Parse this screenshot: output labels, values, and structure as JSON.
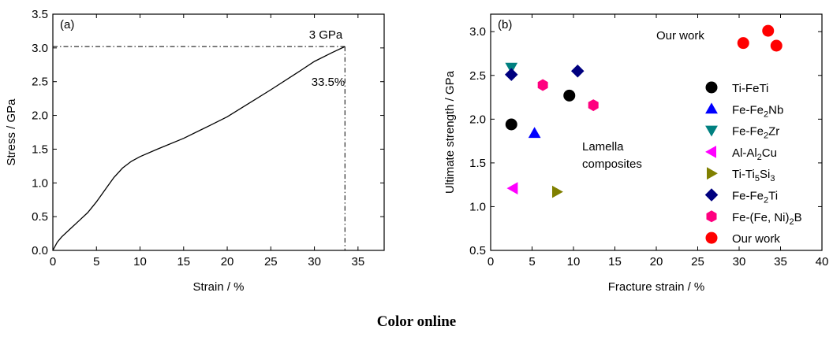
{
  "caption": "Color online",
  "chart_data": [
    {
      "type": "line",
      "panel_label": "(a)",
      "xlabel": "Strain / %",
      "ylabel": "Stress / GPa",
      "xlim": [
        0,
        38
      ],
      "ylim": [
        0,
        3.5
      ],
      "xticks": [
        0,
        5,
        10,
        15,
        20,
        25,
        30,
        35
      ],
      "yticks": [
        0.0,
        0.5,
        1.0,
        1.5,
        2.0,
        2.5,
        3.0,
        3.5
      ],
      "xtick_labels": [
        "0",
        "5",
        "10",
        "15",
        "20",
        "25",
        "30",
        "35"
      ],
      "ytick_labels": [
        "0.0",
        "0.5",
        "1.0",
        "1.5",
        "2.0",
        "2.5",
        "3.0",
        "3.5"
      ],
      "grid": false,
      "series": [
        {
          "x": [
            0,
            0.5,
            1,
            2,
            3,
            4,
            5,
            6,
            7,
            8,
            9,
            10,
            12,
            15,
            18,
            20,
            22,
            25,
            28,
            30,
            32,
            33.5
          ],
          "y": [
            0,
            0.12,
            0.2,
            0.32,
            0.44,
            0.56,
            0.72,
            0.9,
            1.08,
            1.22,
            1.32,
            1.39,
            1.5,
            1.66,
            1.85,
            1.98,
            2.14,
            2.38,
            2.63,
            2.8,
            2.93,
            3.02
          ],
          "color": "#000000"
        }
      ],
      "annotations": [
        {
          "text": "3 GPa",
          "x": 33.5,
          "y": 3.02,
          "role": "peak stress"
        },
        {
          "text": "33.5%",
          "x": 33.5,
          "y": 3.02,
          "role": "fracture strain"
        }
      ]
    },
    {
      "type": "scatter",
      "panel_label": "(b)",
      "xlabel": "Fracture strain / %",
      "ylabel": "Ultimate strength / GPa",
      "xlim": [
        0,
        40
      ],
      "ylim": [
        0.5,
        3.2
      ],
      "xticks": [
        0,
        5,
        10,
        15,
        20,
        25,
        30,
        35,
        40
      ],
      "yticks": [
        0.5,
        1.0,
        1.5,
        2.0,
        2.5,
        3.0
      ],
      "xtick_labels": [
        "0",
        "5",
        "10",
        "15",
        "20",
        "25",
        "30",
        "35",
        "40"
      ],
      "ytick_labels": [
        "0.5",
        "1.0",
        "1.5",
        "2.0",
        "2.5",
        "3.0"
      ],
      "grid": false,
      "legend_position": "right",
      "annotations": [
        {
          "text": "Our work",
          "x": 20.5,
          "y": 2.93
        },
        {
          "text": "Lamella",
          "x": 11.2,
          "y": 1.84
        },
        {
          "text": "composites",
          "x": 11.2,
          "y": 1.66
        }
      ],
      "series": [
        {
          "name": "Ti-FeTi",
          "marker": "circle",
          "color": "#000000",
          "x": [
            2.5,
            9.5
          ],
          "y": [
            1.94,
            2.27
          ]
        },
        {
          "name": "Fe-Fe2Nb",
          "marker": "triangle-up",
          "color": "#0000ff",
          "x": [
            5.3
          ],
          "y": [
            1.84
          ]
        },
        {
          "name": "Fe-Fe2Zr",
          "marker": "triangle-down",
          "color": "#008080",
          "x": [
            2.5
          ],
          "y": [
            2.59
          ]
        },
        {
          "name": "Al-Al2Cu",
          "marker": "triangle-left",
          "color": "#ff00ff",
          "x": [
            2.7
          ],
          "y": [
            1.21
          ]
        },
        {
          "name": "Ti-Ti5Si3",
          "marker": "triangle-right",
          "color": "#808000",
          "x": [
            8.0
          ],
          "y": [
            1.17
          ]
        },
        {
          "name": "Fe-Fe2Ti",
          "marker": "diamond",
          "color": "#00007f",
          "x": [
            2.5,
            10.5
          ],
          "y": [
            2.51,
            2.55
          ]
        },
        {
          "name": "Fe-(Fe, Ni)2B",
          "marker": "hexagon",
          "color": "#ff007f",
          "x": [
            6.3,
            12.4
          ],
          "y": [
            2.39,
            2.16
          ]
        },
        {
          "name": "Our work",
          "marker": "circle",
          "color": "#ff0000",
          "x": [
            30.5,
            33.5,
            34.5
          ],
          "y": [
            2.87,
            3.01,
            2.84
          ]
        }
      ],
      "legend_items": [
        {
          "parts": [
            {
              "t": "Ti-FeTi"
            }
          ]
        },
        {
          "parts": [
            {
              "t": "Fe-Fe"
            },
            {
              "t": "2",
              "sub": true
            },
            {
              "t": "Nb"
            }
          ]
        },
        {
          "parts": [
            {
              "t": "Fe-Fe"
            },
            {
              "t": "2",
              "sub": true
            },
            {
              "t": "Zr"
            }
          ]
        },
        {
          "parts": [
            {
              "t": "Al-Al"
            },
            {
              "t": "2",
              "sub": true
            },
            {
              "t": "Cu"
            }
          ]
        },
        {
          "parts": [
            {
              "t": "Ti-Ti"
            },
            {
              "t": "5",
              "sub": true
            },
            {
              "t": "Si"
            },
            {
              "t": "3",
              "sub": true
            }
          ]
        },
        {
          "parts": [
            {
              "t": "Fe-Fe"
            },
            {
              "t": "2",
              "sub": true
            },
            {
              "t": "Ti"
            }
          ]
        },
        {
          "parts": [
            {
              "t": "Fe-(Fe, Ni)"
            },
            {
              "t": "2",
              "sub": true
            },
            {
              "t": "B"
            }
          ]
        },
        {
          "parts": [
            {
              "t": "Our work"
            }
          ]
        }
      ]
    }
  ]
}
